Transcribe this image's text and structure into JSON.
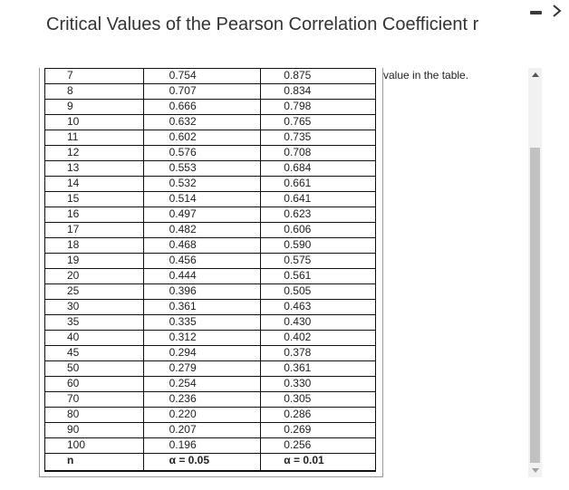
{
  "title": "Critical Values of the Pearson Correlation Coefficient r",
  "side_note": "value in the table.",
  "table": {
    "rows": [
      [
        "7",
        "0.754",
        "0.875"
      ],
      [
        "8",
        "0.707",
        "0.834"
      ],
      [
        "9",
        "0.666",
        "0.798"
      ],
      [
        "10",
        "0.632",
        "0.765"
      ],
      [
        "11",
        "0.602",
        "0.735"
      ],
      [
        "12",
        "0.576",
        "0.708"
      ],
      [
        "13",
        "0.553",
        "0.684"
      ],
      [
        "14",
        "0.532",
        "0.661"
      ],
      [
        "15",
        "0.514",
        "0.641"
      ],
      [
        "16",
        "0.497",
        "0.623"
      ],
      [
        "17",
        "0.482",
        "0.606"
      ],
      [
        "18",
        "0.468",
        "0.590"
      ],
      [
        "19",
        "0.456",
        "0.575"
      ],
      [
        "20",
        "0.444",
        "0.561"
      ],
      [
        "25",
        "0.396",
        "0.505"
      ],
      [
        "30",
        "0.361",
        "0.463"
      ],
      [
        "35",
        "0.335",
        "0.430"
      ],
      [
        "40",
        "0.312",
        "0.402"
      ],
      [
        "45",
        "0.294",
        "0.378"
      ],
      [
        "50",
        "0.279",
        "0.361"
      ],
      [
        "60",
        "0.254",
        "0.330"
      ],
      [
        "70",
        "0.236",
        "0.305"
      ],
      [
        "80",
        "0.220",
        "0.286"
      ],
      [
        "90",
        "0.207",
        "0.269"
      ],
      [
        "100",
        "0.196",
        "0.256"
      ]
    ],
    "footer": [
      "n",
      "α = 0.05",
      "α = 0.01"
    ]
  },
  "icons": {
    "minimize": "minimize-icon",
    "next": "chevron-right-icon",
    "scroll_up": "arrow-up-icon",
    "scroll_down": "arrow-down-icon"
  }
}
